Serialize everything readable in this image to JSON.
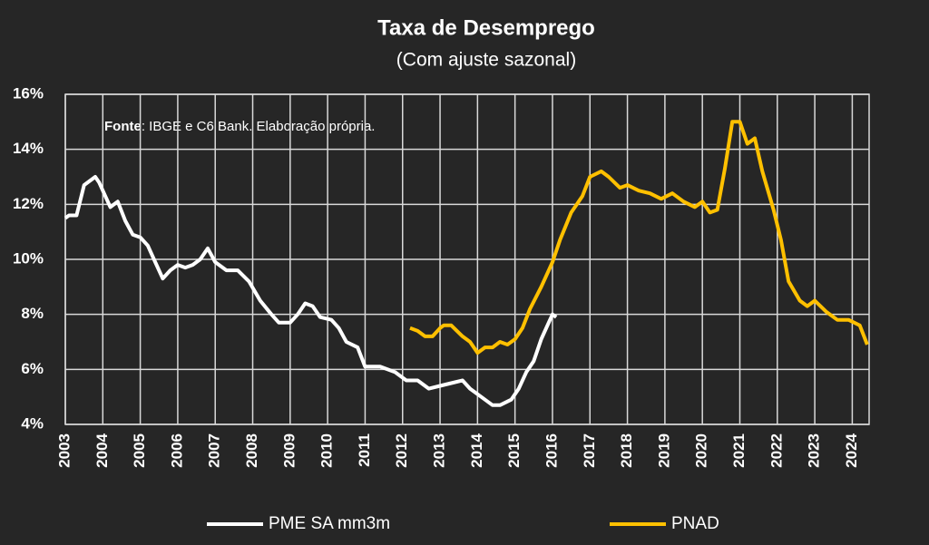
{
  "chart_data": {
    "type": "line",
    "title": "Taxa de Desemprego",
    "subtitle": "(Com ajuste sazonal)",
    "annotation_label": "Fonte",
    "annotation": ": IBGE e C6 Bank. Elaboração própria.",
    "xlim": [
      2003,
      2024.45
    ],
    "xticks": [
      2003,
      2004,
      2005,
      2006,
      2007,
      2008,
      2009,
      2010,
      2011,
      2012,
      2013,
      2014,
      2015,
      2016,
      2017,
      2018,
      2019,
      2020,
      2021,
      2022,
      2023,
      2024
    ],
    "ylim": [
      4,
      16
    ],
    "yticks": [
      {
        "value": 4,
        "label": "4%"
      },
      {
        "value": 6,
        "label": "6%"
      },
      {
        "value": 8,
        "label": "8%"
      },
      {
        "value": 10,
        "label": "10%"
      },
      {
        "value": 12,
        "label": "12%"
      },
      {
        "value": 14,
        "label": "14%"
      },
      {
        "value": 16,
        "label": "16%"
      }
    ],
    "grid": true,
    "series": [
      {
        "name": "PME SA mm3m",
        "color": "#ffffff",
        "x": [
          2003.0,
          2003.1,
          2003.3,
          2003.5,
          2003.8,
          2003.9,
          2004.2,
          2004.4,
          2004.6,
          2004.8,
          2005.0,
          2005.2,
          2005.4,
          2005.6,
          2005.8,
          2006.0,
          2006.2,
          2006.4,
          2006.6,
          2006.8,
          2007.0,
          2007.3,
          2007.6,
          2007.9,
          2008.2,
          2008.5,
          2008.7,
          2009.0,
          2009.2,
          2009.4,
          2009.6,
          2009.8,
          2010.1,
          2010.3,
          2010.5,
          2010.8,
          2011.0,
          2011.4,
          2011.8,
          2012.1,
          2012.4,
          2012.7,
          2013.0,
          2013.3,
          2013.6,
          2013.8,
          2014.1,
          2014.4,
          2014.6,
          2014.9,
          2015.1,
          2015.3,
          2015.5,
          2015.7,
          2015.9,
          2016.0,
          2016.1
        ],
        "values": [
          11.5,
          11.6,
          11.6,
          12.7,
          13.0,
          12.8,
          11.9,
          12.1,
          11.4,
          10.9,
          10.8,
          10.5,
          9.9,
          9.3,
          9.6,
          9.8,
          9.7,
          9.8,
          10.0,
          10.4,
          9.9,
          9.6,
          9.6,
          9.2,
          8.5,
          8.0,
          7.7,
          7.7,
          8.0,
          8.4,
          8.3,
          7.9,
          7.8,
          7.5,
          7.0,
          6.8,
          6.1,
          6.1,
          5.9,
          5.6,
          5.6,
          5.3,
          5.4,
          5.5,
          5.6,
          5.3,
          5.0,
          4.7,
          4.7,
          4.9,
          5.3,
          5.9,
          6.3,
          7.1,
          7.7,
          8.0,
          7.9
        ]
      },
      {
        "name": "PNAD",
        "color": "#ffc000",
        "x": [
          2012.2,
          2012.4,
          2012.6,
          2012.8,
          2013.0,
          2013.1,
          2013.3,
          2013.6,
          2013.8,
          2014.0,
          2014.2,
          2014.4,
          2014.6,
          2014.8,
          2015.0,
          2015.2,
          2015.4,
          2015.7,
          2016.0,
          2016.2,
          2016.5,
          2016.8,
          2017.0,
          2017.3,
          2017.5,
          2017.8,
          2018.0,
          2018.3,
          2018.6,
          2018.9,
          2019.2,
          2019.5,
          2019.8,
          2020.0,
          2020.2,
          2020.4,
          2020.6,
          2020.8,
          2021.0,
          2021.2,
          2021.4,
          2021.6,
          2021.9,
          2022.1,
          2022.3,
          2022.6,
          2022.8,
          2023.0,
          2023.3,
          2023.6,
          2023.9,
          2024.2,
          2024.4
        ],
        "values": [
          7.5,
          7.4,
          7.2,
          7.2,
          7.5,
          7.6,
          7.6,
          7.2,
          7.0,
          6.6,
          6.8,
          6.8,
          7.0,
          6.9,
          7.1,
          7.5,
          8.2,
          9.0,
          9.9,
          10.7,
          11.7,
          12.3,
          13.0,
          13.2,
          13.0,
          12.6,
          12.7,
          12.5,
          12.4,
          12.2,
          12.4,
          12.1,
          11.9,
          12.1,
          11.7,
          11.8,
          13.3,
          15.0,
          15.0,
          14.2,
          14.4,
          13.2,
          11.8,
          10.7,
          9.2,
          8.5,
          8.3,
          8.5,
          8.1,
          7.8,
          7.8,
          7.6,
          6.9
        ]
      }
    ]
  }
}
